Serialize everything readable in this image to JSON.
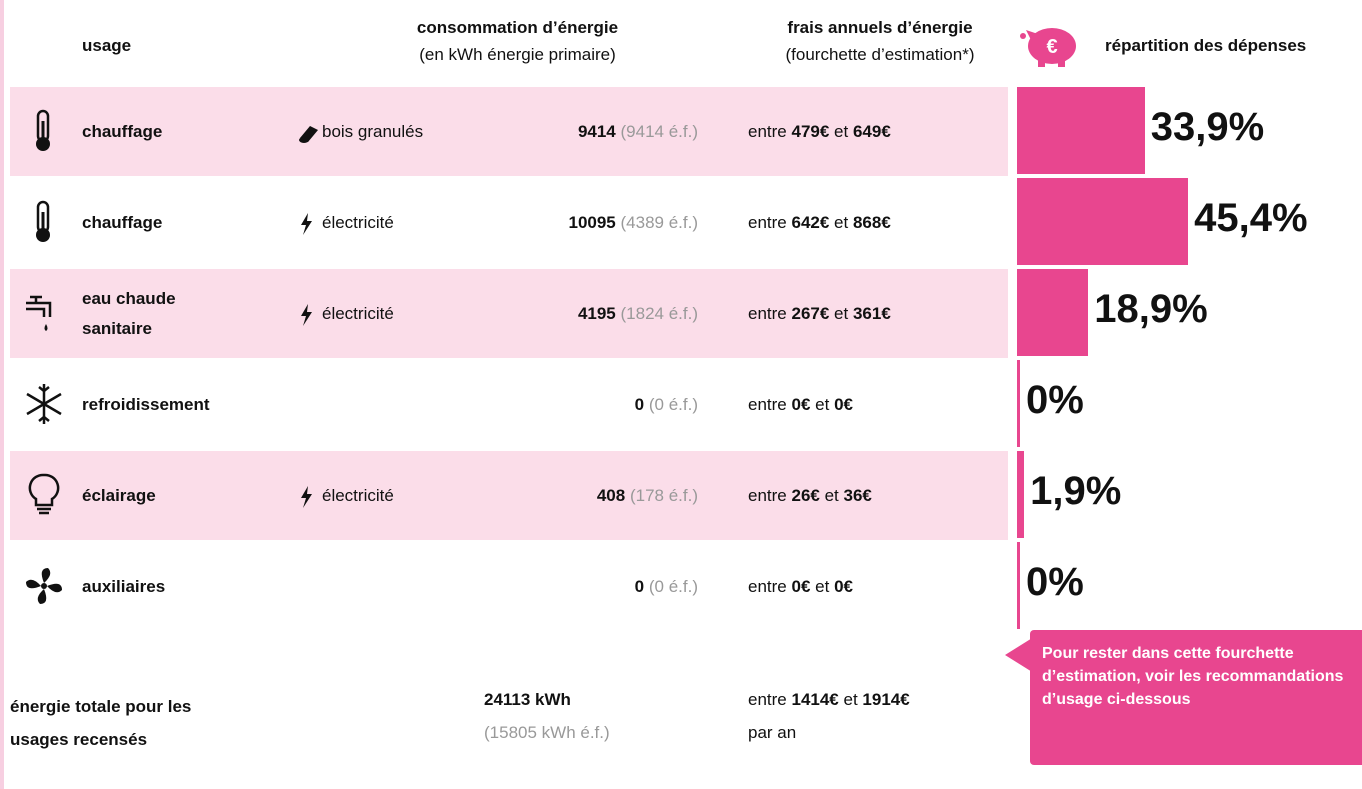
{
  "header": {
    "usage": "usage",
    "consumption_title": "consommation d’énergie",
    "consumption_sub": "(en kWh énergie primaire)",
    "cost_title": "frais annuels d’énergie",
    "cost_sub": "(fourchette d’estimation*)",
    "icon_symbol": "€",
    "share_title": "répartition des dépenses"
  },
  "words": {
    "between": "entre",
    "and": "et"
  },
  "rows": [
    {
      "usage": "chauffage",
      "energy": "bois granulés",
      "consumption": "9414",
      "ef": "(9414 é.f.)",
      "min": "479€",
      "max": "649€",
      "share": 33.9,
      "share_label": "33,9%"
    },
    {
      "usage": "chauffage",
      "energy": "électricité",
      "consumption": "10095",
      "ef": "(4389 é.f.)",
      "min": "642€",
      "max": "868€",
      "share": 45.4,
      "share_label": "45,4%"
    },
    {
      "usage": "eau chaude sanitaire",
      "energy": "électricité",
      "consumption": "4195",
      "ef": "(1824 é.f.)",
      "min": "267€",
      "max": "361€",
      "share": 18.9,
      "share_label": "18,9%"
    },
    {
      "usage": "refroidissement",
      "energy": null,
      "consumption": "0",
      "ef": "(0 é.f.)",
      "min": "0€",
      "max": "0€",
      "share": 0,
      "share_label": "0%"
    },
    {
      "usage": "éclairage",
      "energy": "électricité",
      "consumption": "408",
      "ef": "(178 é.f.)",
      "min": "26€",
      "max": "36€",
      "share": 1.9,
      "share_label": "1,9%"
    },
    {
      "usage": "auxiliaires",
      "energy": null,
      "consumption": "0",
      "ef": "(0 é.f.)",
      "min": "0€",
      "max": "0€",
      "share": 0,
      "share_label": "0%"
    }
  ],
  "total": {
    "label": "énergie totale pour les usages recensés",
    "consumption": "24113 kWh",
    "ef": "(15805 kWh é.f.)",
    "min": "1414€",
    "max": "1914€",
    "per_year": "par an"
  },
  "callout": "Pour rester dans cette fourchette d’estimation, voir les recommandations d’usage ci-dessous"
}
